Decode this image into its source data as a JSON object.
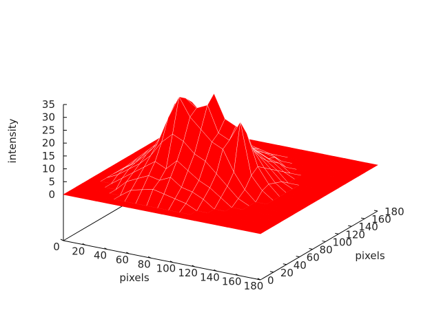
{
  "chart_data": {
    "type": "surface3d",
    "title": "",
    "xlabel": "pixels",
    "ylabel": "pixels",
    "zlabel": "intensity",
    "xlim": [
      0,
      180
    ],
    "ylim": [
      0,
      180
    ],
    "zlim": [
      0,
      35
    ],
    "x_ticks": [
      "0",
      "20",
      "40",
      "60",
      "80",
      "100",
      "120",
      "140",
      "160",
      "180"
    ],
    "y_ticks": [
      "0",
      "20",
      "40",
      "60",
      "80",
      "100",
      "120",
      "140",
      "160",
      "180"
    ],
    "z_ticks": [
      "0",
      "5",
      "10",
      "15",
      "20",
      "25",
      "30",
      "35"
    ],
    "color": "#ff0000",
    "grid_step": 10,
    "grid_x": [
      0,
      10,
      20,
      30,
      40,
      50,
      60,
      70,
      80,
      90,
      100,
      110,
      120,
      130,
      140,
      150,
      160,
      170,
      180
    ],
    "grid_y": [
      0,
      10,
      20,
      30,
      40,
      50,
      60,
      70,
      80,
      90,
      100,
      110,
      120,
      130,
      140,
      150,
      160,
      170,
      180
    ],
    "z": [
      [
        0,
        0,
        0,
        0,
        0,
        0,
        0,
        0,
        0,
        0,
        0,
        0,
        0,
        0,
        0,
        0,
        0,
        0,
        0
      ],
      [
        0,
        0,
        0,
        0,
        0,
        0,
        0,
        0,
        0,
        0,
        0,
        0,
        0,
        0,
        0,
        0,
        0,
        0,
        0
      ],
      [
        0,
        0,
        0,
        0,
        0,
        3,
        4,
        5,
        4,
        3,
        2,
        0,
        0,
        0,
        0,
        0,
        0,
        0,
        0
      ],
      [
        0,
        0,
        0,
        0,
        4,
        6,
        8,
        7,
        9,
        6,
        5,
        3,
        0,
        0,
        0,
        0,
        0,
        0,
        0
      ],
      [
        0,
        0,
        0,
        3,
        6,
        9,
        12,
        10,
        14,
        11,
        8,
        6,
        3,
        0,
        0,
        0,
        0,
        0,
        0
      ],
      [
        0,
        0,
        2,
        5,
        8,
        12,
        18,
        22,
        20,
        16,
        14,
        10,
        6,
        2,
        0,
        0,
        0,
        0,
        0
      ],
      [
        0,
        0,
        3,
        6,
        10,
        15,
        26,
        35,
        28,
        24,
        20,
        18,
        10,
        4,
        0,
        0,
        0,
        0,
        0
      ],
      [
        0,
        0,
        3,
        7,
        11,
        18,
        30,
        33,
        30,
        32,
        22,
        20,
        28,
        8,
        3,
        0,
        0,
        0,
        0
      ],
      [
        0,
        0,
        4,
        8,
        12,
        20,
        28,
        30,
        26,
        35,
        26,
        24,
        22,
        10,
        4,
        0,
        0,
        0,
        0
      ],
      [
        0,
        0,
        3,
        7,
        11,
        16,
        22,
        24,
        20,
        25,
        21,
        18,
        14,
        8,
        3,
        0,
        0,
        0,
        0
      ],
      [
        0,
        0,
        3,
        6,
        10,
        14,
        18,
        20,
        19,
        20,
        17,
        14,
        10,
        6,
        2,
        0,
        0,
        0,
        0
      ],
      [
        0,
        0,
        2,
        5,
        8,
        11,
        14,
        15,
        16,
        15,
        12,
        10,
        7,
        4,
        0,
        0,
        0,
        0,
        0
      ],
      [
        0,
        0,
        0,
        4,
        6,
        8,
        10,
        12,
        12,
        11,
        9,
        7,
        5,
        2,
        0,
        0,
        0,
        0,
        0
      ],
      [
        0,
        0,
        0,
        2,
        4,
        6,
        7,
        8,
        9,
        8,
        6,
        4,
        3,
        0,
        0,
        0,
        0,
        0,
        0
      ],
      [
        0,
        0,
        0,
        0,
        2,
        4,
        5,
        6,
        6,
        5,
        4,
        3,
        0,
        0,
        0,
        0,
        0,
        0,
        0
      ],
      [
        0,
        0,
        0,
        0,
        0,
        2,
        3,
        3,
        4,
        3,
        2,
        0,
        0,
        0,
        0,
        0,
        0,
        0,
        0
      ],
      [
        0,
        0,
        0,
        0,
        0,
        0,
        0,
        0,
        0,
        0,
        0,
        0,
        0,
        0,
        0,
        0,
        0,
        0,
        0
      ],
      [
        0,
        0,
        0,
        0,
        0,
        0,
        0,
        0,
        0,
        0,
        0,
        0,
        0,
        0,
        0,
        0,
        0,
        0,
        0
      ],
      [
        0,
        0,
        0,
        0,
        0,
        0,
        0,
        0,
        0,
        0,
        0,
        0,
        0,
        0,
        0,
        0,
        0,
        0,
        0
      ]
    ]
  }
}
